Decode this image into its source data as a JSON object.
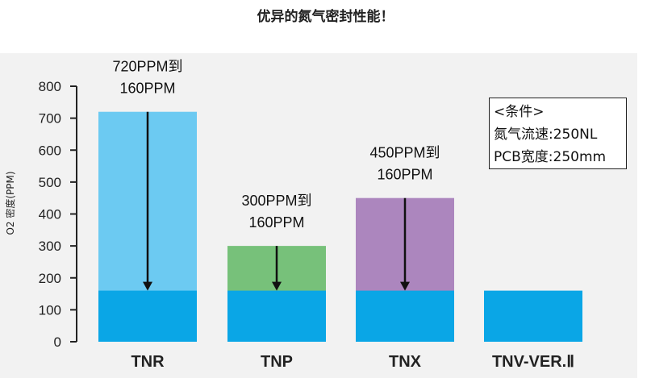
{
  "title": "优异的氮气密封性能！",
  "conditions": {
    "heading": "<条件>",
    "line1": "氮气流速:250NL",
    "line2": "PCB宽度:250mm"
  },
  "chart_data": {
    "type": "bar",
    "title": "优异的氮气密封性能！",
    "xlabel": "",
    "ylabel": "O2 密度(PPM)",
    "ylim": [
      0,
      800
    ],
    "yticks": [
      0,
      100,
      200,
      300,
      400,
      500,
      600,
      700,
      800
    ],
    "categories": [
      "TNR",
      "TNP",
      "TNX",
      "TNV-VER.Ⅱ"
    ],
    "series": [
      {
        "values": [
          720,
          300,
          450,
          null
        ],
        "colors": [
          "#6ccaf2",
          "#77c17a",
          "#ac86be",
          null
        ]
      },
      {
        "values": [
          160,
          160,
          160,
          160
        ],
        "color": "#0aa6e6"
      }
    ],
    "annotations": [
      {
        "category": "TNR",
        "from": 720,
        "to": 160,
        "lines": [
          "720PPM到",
          "160PPM"
        ]
      },
      {
        "category": "TNP",
        "from": 300,
        "to": 160,
        "lines": [
          "300PPM到",
          "160PPM"
        ]
      },
      {
        "category": "TNX",
        "from": 450,
        "to": 160,
        "lines": [
          "450PPM到",
          "160PPM"
        ]
      }
    ],
    "grid": false
  }
}
